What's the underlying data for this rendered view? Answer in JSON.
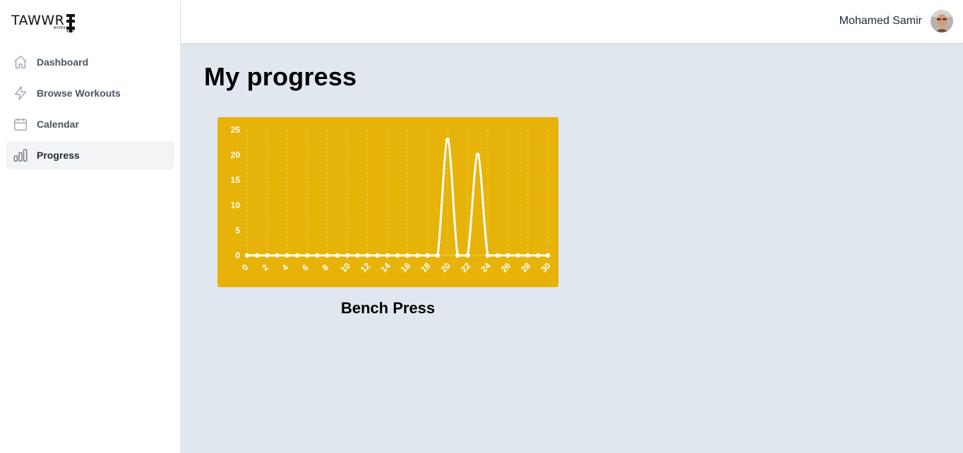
{
  "app": {
    "logo_text": "TAWWR",
    "logo_sub_line1": "WORKOUT",
    "logo_sub_line2": "APP"
  },
  "sidebar": {
    "items": [
      {
        "label": "Dashboard",
        "icon": "home-icon",
        "active": false
      },
      {
        "label": "Browse Workouts",
        "icon": "lightning-icon",
        "active": false
      },
      {
        "label": "Calendar",
        "icon": "calendar-icon",
        "active": false
      },
      {
        "label": "Progress",
        "icon": "bar-chart-icon",
        "active": true
      }
    ]
  },
  "header": {
    "user_name": "Mohamed Samir",
    "avatar_icon": "user-avatar"
  },
  "main": {
    "title": "My progress",
    "chart_caption": "Bench Press"
  },
  "colors": {
    "chart_background": "#e8b308",
    "chart_line": "#ffffff",
    "main_background": "#e1e7ef"
  },
  "chart_data": {
    "type": "line",
    "title": "",
    "xlabel": "",
    "ylabel": "",
    "x": [
      0,
      1,
      2,
      3,
      4,
      5,
      6,
      7,
      8,
      9,
      10,
      11,
      12,
      13,
      14,
      15,
      16,
      17,
      18,
      19,
      20,
      21,
      22,
      23,
      24,
      25,
      26,
      27,
      28,
      29,
      30
    ],
    "series": [
      {
        "values": [
          0,
          0,
          0,
          0,
          0,
          0,
          0,
          0,
          0,
          0,
          0,
          0,
          0,
          0,
          0,
          0,
          0,
          0,
          0,
          0,
          23,
          0,
          0,
          20,
          0,
          0,
          0,
          0,
          0,
          0,
          0
        ]
      }
    ],
    "x_ticks": [
      "0",
      "2",
      "4",
      "6",
      "8",
      "10",
      "12",
      "14",
      "16",
      "18",
      "20",
      "22",
      "24",
      "26",
      "28",
      "30"
    ],
    "y_ticks": [
      "0",
      "5",
      "10",
      "15",
      "20",
      "25"
    ],
    "xlim": [
      0,
      30
    ],
    "ylim": [
      0,
      25
    ],
    "grid": "vertical-dashed",
    "legend": "none"
  }
}
